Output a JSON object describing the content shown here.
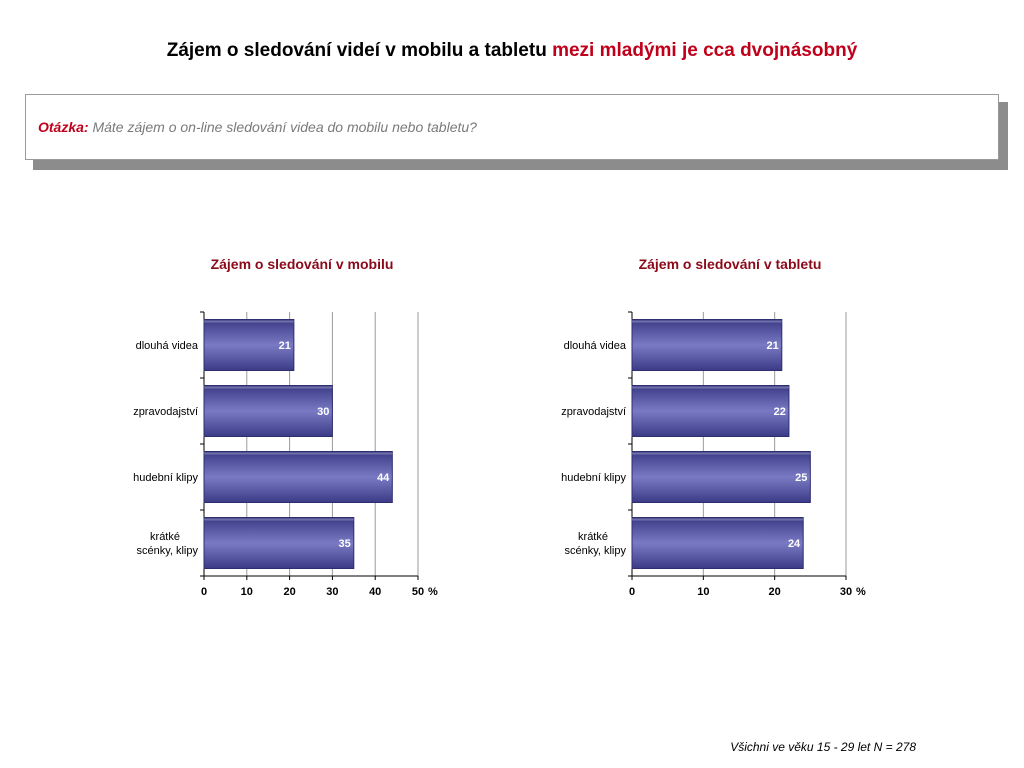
{
  "header": {
    "title_main": "Zájem o sledování videí v mobilu a tabletu",
    "title_highlight": "mezi mladými je cca dvojnásobný"
  },
  "question": {
    "label": "Otázka:",
    "text": "Máte zájem o on-line sledování videa do mobilu nebo tabletu?"
  },
  "footer": {
    "base": "Všichni ve věku 15 - 29 let",
    "n_label": "N =",
    "n_value": "278"
  },
  "colors": {
    "bar_fill": "#4a4a9a",
    "bar_edge": "#2e2e70",
    "title_accent": "#c0001a",
    "chart_title": "#8b0a1a"
  },
  "chart_data": [
    {
      "type": "bar",
      "orientation": "horizontal",
      "title": "Zájem o sledování v mobilu",
      "categories": [
        "dlouhá videa",
        "zpravodajství",
        "hudební klipy",
        "krátké scénky, klipy"
      ],
      "values": [
        21,
        30,
        44,
        35
      ],
      "xlim": [
        0,
        50
      ],
      "xticks": [
        0,
        10,
        20,
        30,
        40,
        50
      ],
      "unit": "%",
      "grid": true
    },
    {
      "type": "bar",
      "orientation": "horizontal",
      "title": "Zájem o sledování v tabletu",
      "categories": [
        "dlouhá videa",
        "zpravodajství",
        "hudební klipy",
        "krátké scénky, klipy"
      ],
      "values": [
        21,
        22,
        25,
        24
      ],
      "xlim": [
        0,
        30
      ],
      "xticks": [
        0,
        10,
        20,
        30
      ],
      "unit": "%",
      "grid": true
    }
  ]
}
